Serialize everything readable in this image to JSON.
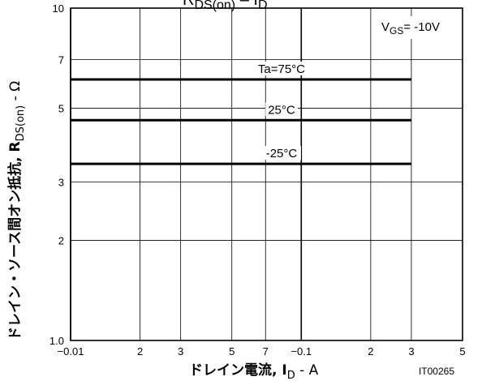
{
  "chart_data": {
    "type": "line",
    "title": "R_DS(on) – I_D",
    "x_scale": "log",
    "y_scale": "log",
    "x_ticks": [
      {
        "value": 0.01,
        "label": "−0.01"
      },
      {
        "value": 0.02,
        "label": "2"
      },
      {
        "value": 0.03,
        "label": "3"
      },
      {
        "value": 0.05,
        "label": "5"
      },
      {
        "value": 0.07,
        "label": "7"
      },
      {
        "value": 0.1,
        "label": "−0.1"
      },
      {
        "value": 0.2,
        "label": "2"
      },
      {
        "value": 0.3,
        "label": "3"
      },
      {
        "value": 0.5,
        "label": "5"
      }
    ],
    "y_ticks": [
      {
        "value": 1,
        "label": "1.0"
      },
      {
        "value": 2,
        "label": "2"
      },
      {
        "value": 3,
        "label": "3"
      },
      {
        "value": 5,
        "label": "5"
      },
      {
        "value": 7,
        "label": "7"
      },
      {
        "value": 10,
        "label": "10"
      }
    ],
    "xlim": [
      0.01,
      0.5
    ],
    "ylim": [
      1,
      10
    ],
    "grid": true,
    "xlabel": {
      "main": "ドレイン電流, I",
      "sub": "D",
      "unit": " - A"
    },
    "ylabel": {
      "main": "ドレイン・ソース間オン抵抗, R",
      "sub": "DS(on)",
      "unit": " - Ω"
    },
    "condition": {
      "main": "V",
      "sub": "GS",
      "value": "= -10V"
    },
    "series": [
      {
        "name": "Ta=75°C",
        "x": [
          0.01,
          0.3
        ],
        "y": [
          6.1,
          6.1
        ]
      },
      {
        "name": "25°C",
        "x": [
          0.01,
          0.3
        ],
        "y": [
          4.6,
          4.6
        ]
      },
      {
        "name": "-25°C",
        "x": [
          0.01,
          0.3
        ],
        "y": [
          3.4,
          3.4
        ]
      }
    ],
    "footnote": "IT00265"
  }
}
